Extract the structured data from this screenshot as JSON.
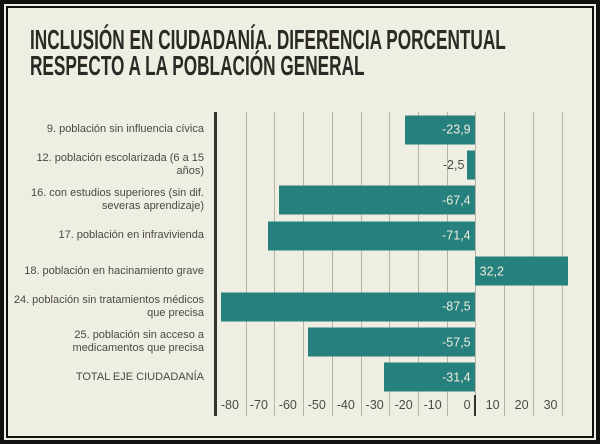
{
  "title": {
    "line1": "INCLUSIÓN EN CIUDADANÍA. DIFERENCIA PORCENTUAL",
    "line2": "RESPECTO A LA POBLACIÓN GENERAL"
  },
  "colors": {
    "background": "#efeee2",
    "frame": "#111110",
    "bar": "#26807d",
    "grid": "#b5b4a6",
    "text": "#4b4a42",
    "title": "#2b2a26",
    "bar_label": "#eeedde",
    "plot_border": "#33322c"
  },
  "chart_data": {
    "type": "bar",
    "orientation": "horizontal",
    "title": "INCLUSIÓN EN CIUDADANÍA. DIFERENCIA PORCENTUAL RESPECTO A LA POBLACIÓN GENERAL",
    "categories": [
      "9. población sin influencia cívica",
      "12. población escolarizada (6 a 15 años)",
      "16. con estudios superiores (sin dif. severas aprendizaje)",
      "17. población en infravivienda",
      "18. población en hacinamiento grave",
      "24. población sin tratamientos médicos que precisa",
      "25. población sin acceso a medicamentos que precisa",
      "TOTAL EJE CIUDADANÍA"
    ],
    "values": [
      -23.9,
      -2.5,
      -67.4,
      -71.4,
      32.2,
      -87.5,
      -57.5,
      -31.4
    ],
    "value_labels": [
      "-23,9",
      "-2,5",
      "-67,4",
      "-71,4",
      "32,2",
      "-87,5",
      "-57,5",
      "-31,4"
    ],
    "xlim": [
      -90,
      35
    ],
    "xticks": [
      -80,
      -70,
      -60,
      -50,
      -40,
      -30,
      -20,
      -10,
      0,
      10,
      20,
      30
    ],
    "xtick_labels": [
      "-80",
      "-70",
      "-60",
      "-50",
      "-40",
      "-30",
      "-20",
      "-10",
      "0",
      "10",
      "20",
      "30"
    ],
    "grid": true,
    "legend": "none",
    "xlabel": "",
    "ylabel": ""
  }
}
